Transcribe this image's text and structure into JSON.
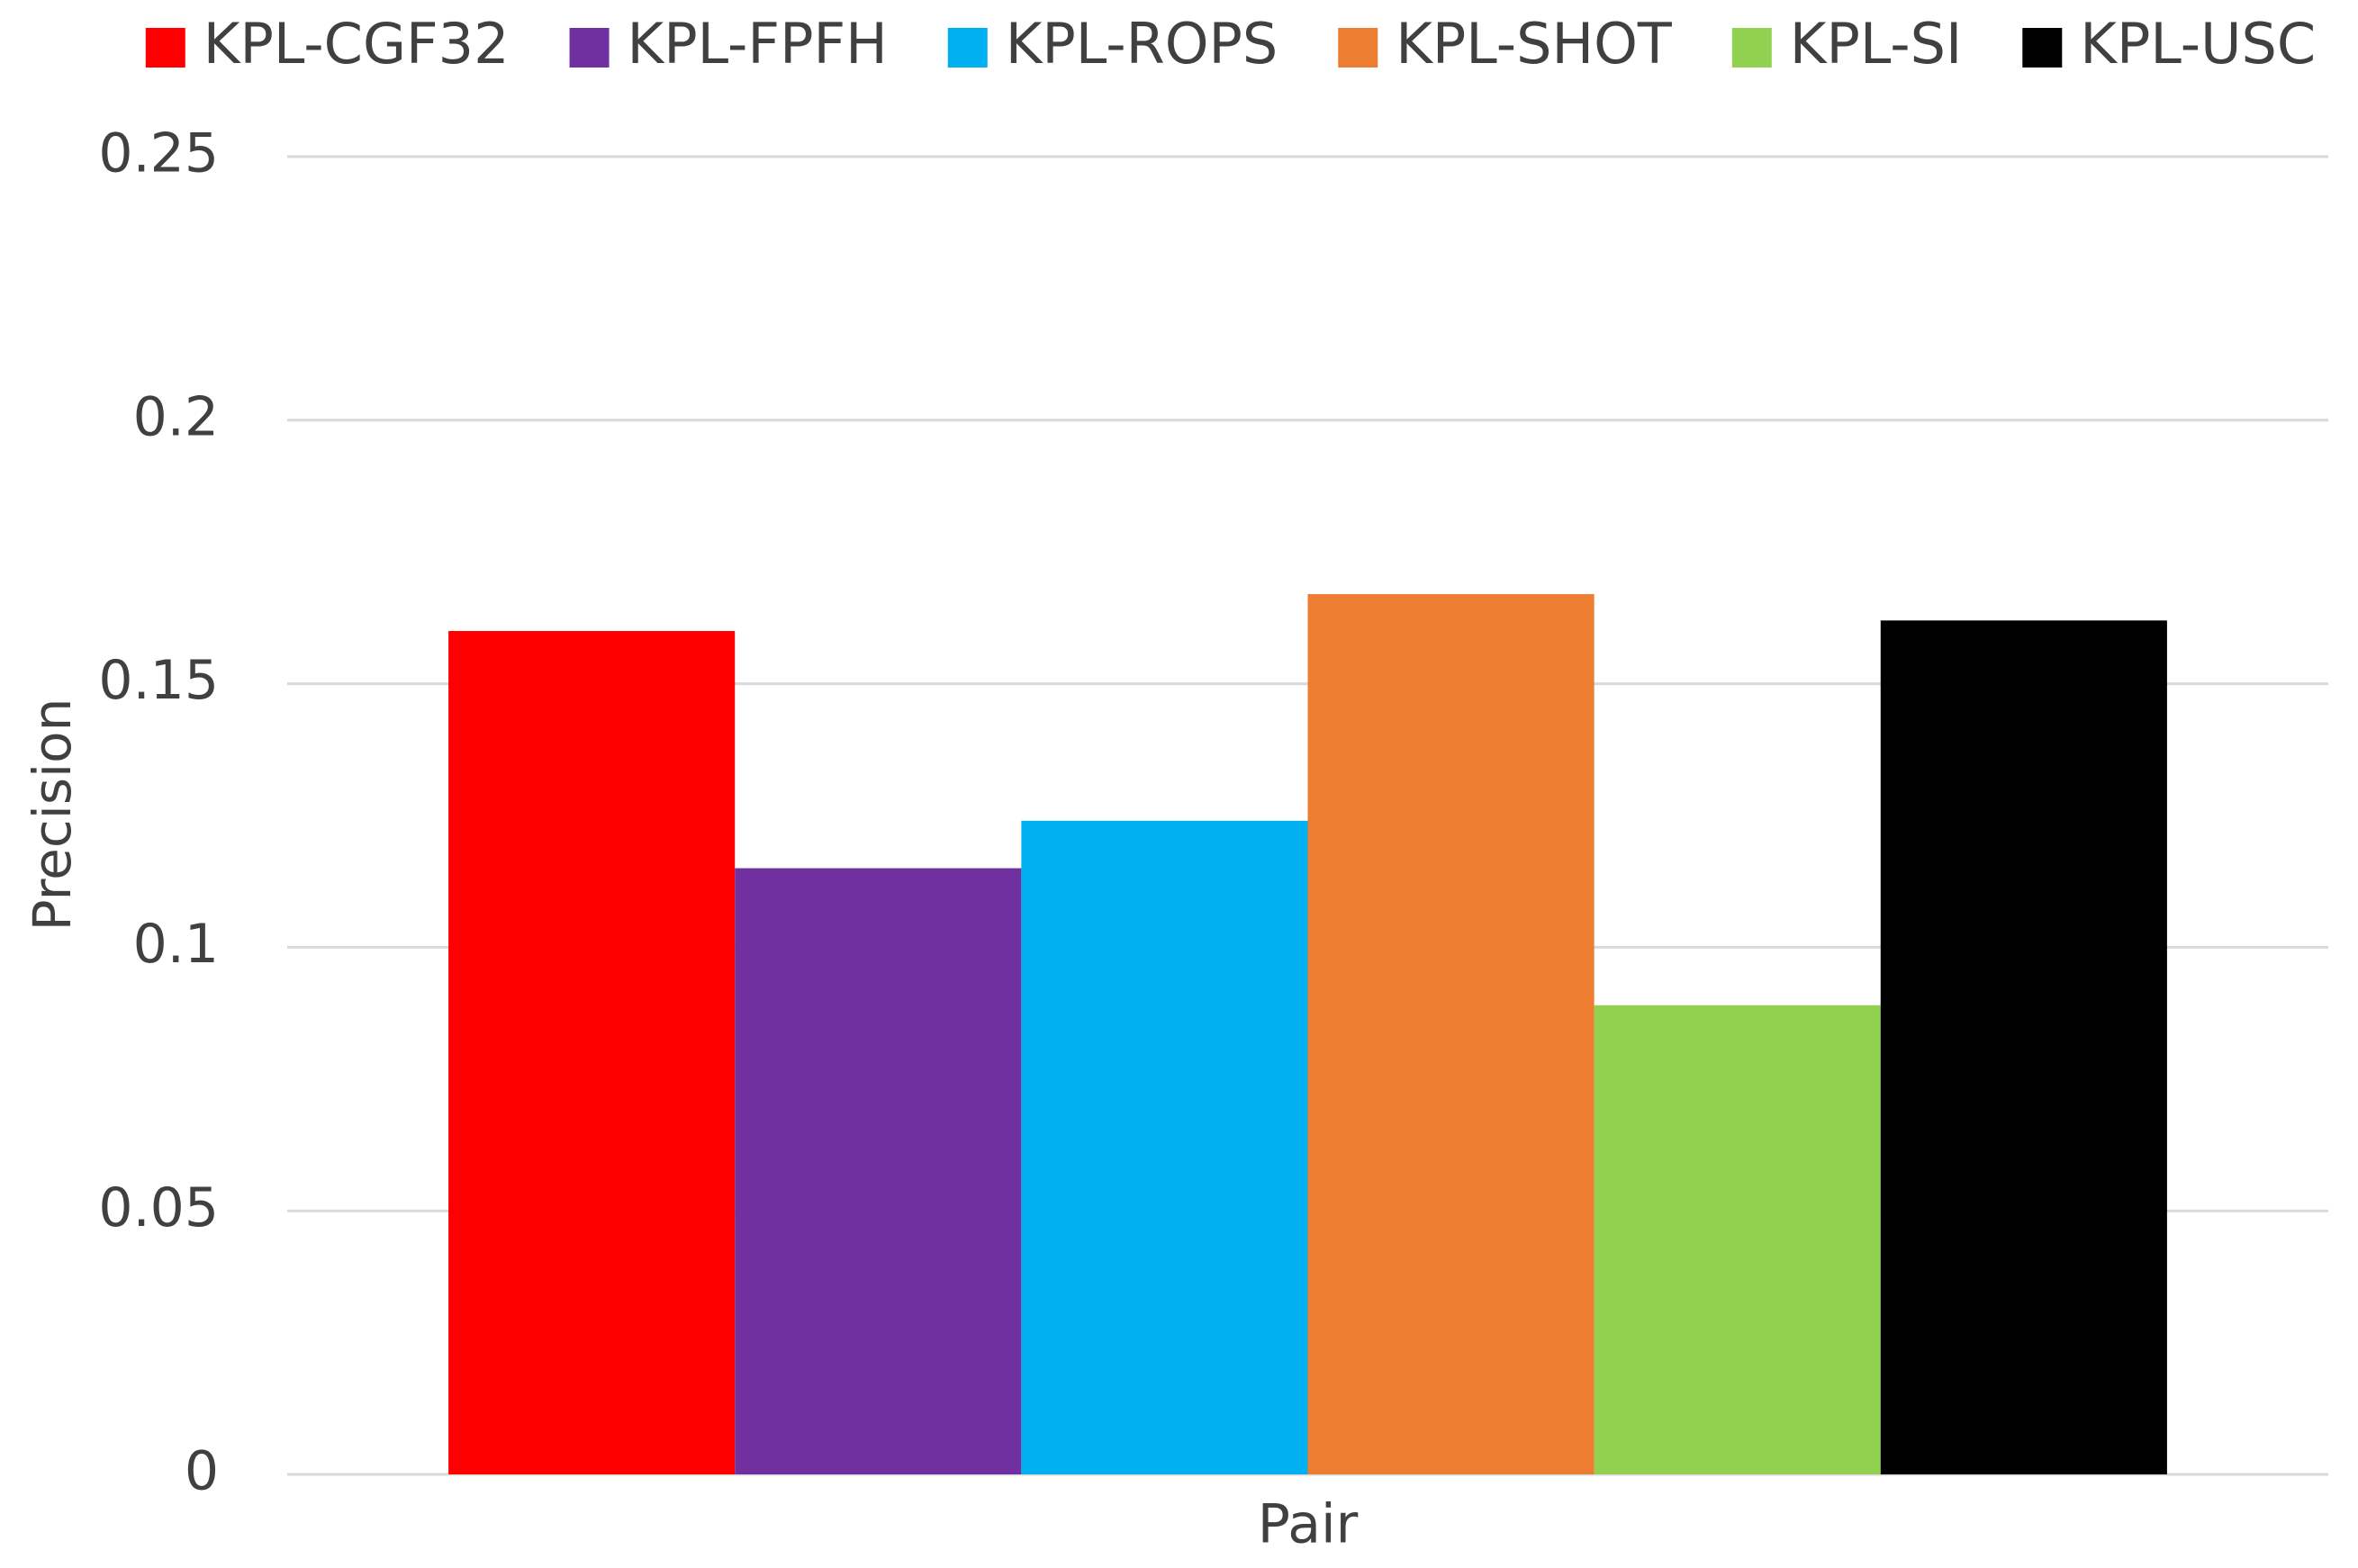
{
  "chart_data": {
    "type": "bar",
    "categories": [
      "Pair"
    ],
    "y_label": "Precision",
    "ylim": [
      0,
      0.25
    ],
    "yticks": [
      0,
      0.05,
      0.1,
      0.15,
      0.2,
      0.25
    ],
    "grid": true,
    "legend": "top",
    "series": [
      {
        "name": "KPL-CGF32",
        "color": "#ff0000",
        "values": [
          0.16
        ]
      },
      {
        "name": "KPL-FPFH",
        "color": "#7030a0",
        "values": [
          0.115
        ]
      },
      {
        "name": "KPL-ROPS",
        "color": "#00b0f0",
        "values": [
          0.124
        ]
      },
      {
        "name": "KPL-SHOT",
        "color": "#ed7d31",
        "values": [
          0.167
        ]
      },
      {
        "name": "KPL-SI",
        "color": "#92d050",
        "values": [
          0.089
        ]
      },
      {
        "name": "KPL-USC",
        "color": "#000000",
        "values": [
          0.162
        ]
      }
    ]
  }
}
